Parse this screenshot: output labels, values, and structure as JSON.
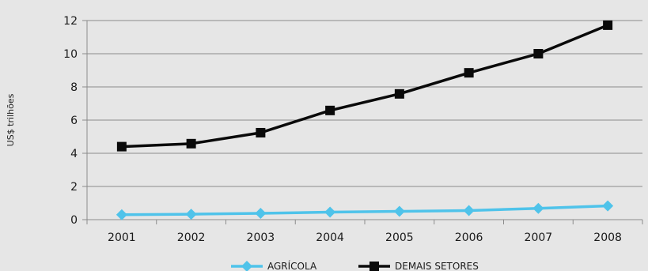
{
  "chart_data": {
    "type": "line",
    "title": "",
    "xlabel": "",
    "ylabel": "US$ trilhões",
    "categories": [
      "2001",
      "2002",
      "2003",
      "2004",
      "2005",
      "2006",
      "2007",
      "2008"
    ],
    "ylim": [
      0,
      12
    ],
    "yticks": [
      0,
      2,
      4,
      6,
      8,
      10,
      12
    ],
    "grid": true,
    "legend_position": "bottom-center",
    "series": [
      {
        "name": "AGRÍCOLA",
        "color": "#4fc3ea",
        "marker": "diamond",
        "values": [
          0.3,
          0.33,
          0.38,
          0.45,
          0.5,
          0.55,
          0.68,
          0.83
        ]
      },
      {
        "name": "DEMAIS SETORES",
        "color": "#0a0a0a",
        "marker": "square",
        "values": [
          4.4,
          4.58,
          5.24,
          6.58,
          7.58,
          8.85,
          10.0,
          11.72
        ]
      }
    ]
  }
}
